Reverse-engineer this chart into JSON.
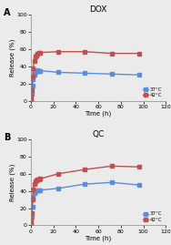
{
  "panel_A": {
    "title": "DOX",
    "label": "A",
    "blue_37": {
      "x": [
        0,
        0.5,
        1,
        1.5,
        2,
        3,
        4,
        5,
        6,
        7,
        8,
        24,
        48,
        72,
        96
      ],
      "y": [
        0,
        3,
        8,
        18,
        25,
        30,
        33,
        35,
        36,
        35,
        35,
        33,
        32,
        31,
        30
      ]
    },
    "red_42": {
      "x": [
        0,
        0.5,
        1,
        1.5,
        2,
        3,
        4,
        5,
        6,
        7,
        8,
        24,
        48,
        72,
        96
      ],
      "y": [
        0,
        5,
        12,
        28,
        38,
        46,
        51,
        53,
        55,
        56,
        56,
        57,
        57,
        55,
        55
      ]
    }
  },
  "panel_B": {
    "title": "QC",
    "label": "B",
    "blue_37": {
      "x": [
        0,
        0.5,
        1,
        1.5,
        2,
        3,
        4,
        5,
        6,
        7,
        8,
        24,
        48,
        72,
        96
      ],
      "y": [
        0,
        4,
        10,
        22,
        32,
        38,
        40,
        41,
        41,
        41,
        41,
        43,
        48,
        50,
        47
      ]
    },
    "red_42": {
      "x": [
        0,
        0.5,
        1,
        1.5,
        2,
        3,
        4,
        5,
        6,
        7,
        8,
        24,
        48,
        72,
        96
      ],
      "y": [
        0,
        6,
        14,
        30,
        42,
        48,
        51,
        52,
        53,
        53,
        54,
        60,
        65,
        69,
        68
      ]
    }
  },
  "blue_color": "#5B8ED6",
  "red_color": "#C0504D",
  "xlim": [
    0,
    120
  ],
  "ylim": [
    0,
    100
  ],
  "xticks": [
    0,
    20,
    40,
    60,
    80,
    100,
    120
  ],
  "yticks": [
    0,
    20,
    40,
    60,
    80,
    100
  ],
  "xlabel": "Time (h)",
  "ylabel": "Release (%)",
  "legend_37": "37°C",
  "legend_42": "42°C",
  "marker": "s",
  "markersize": 2.5,
  "linewidth": 1.0,
  "bg_color": "#EBEBEB"
}
